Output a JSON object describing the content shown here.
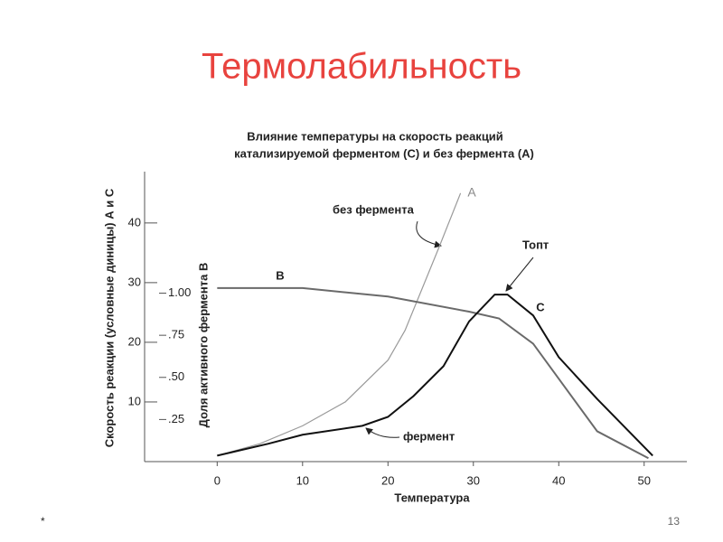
{
  "slide": {
    "title": "Термолабильность",
    "footer_left": "*",
    "page_number": "13"
  },
  "chart_data": {
    "type": "line",
    "title": "Влияние температуры на скорость реакций",
    "subtitle": "катализируемой ферментом (С) и без фермента (А)",
    "x_label": "Температура",
    "y_label": "Скорость реакции (условные диницы) А и С",
    "y2_label": "Доля активного фермента В",
    "xlim": [
      -8.5,
      55
    ],
    "xticks": [
      0,
      10,
      20,
      30,
      40,
      50
    ],
    "ylim": [
      0,
      48
    ],
    "yticks": [
      10,
      20,
      30,
      40
    ],
    "y2lim": [
      0,
      1.7
    ],
    "y2ticks": [
      {
        "value": 1,
        "label": "1.00"
      },
      {
        "value": 0.75,
        "label": ".75"
      },
      {
        "value": 0.5,
        "label": ".50"
      },
      {
        "value": 0.25,
        "label": ".25"
      }
    ],
    "series": [
      {
        "name": "А",
        "color": "#9a9a9a",
        "x": [
          0,
          5,
          10,
          15,
          20,
          22,
          24,
          26,
          28.5
        ],
        "values": [
          1,
          3,
          6,
          10,
          17,
          22,
          29,
          36,
          45
        ]
      },
      {
        "name": "В",
        "color": "#6a6a6a",
        "axis": "y2",
        "x": [
          0,
          10,
          20,
          29.5,
          33,
          37,
          44.5,
          50.5
        ],
        "values": [
          1.03,
          1.03,
          0.98,
          0.89,
          0.85,
          0.7,
          0.18,
          0.02
        ]
      },
      {
        "name": "С",
        "color": "#111111",
        "x": [
          0,
          6,
          10,
          17,
          20,
          23,
          26.5,
          29.5,
          32.5,
          34,
          37,
          40,
          44.5,
          51
        ],
        "values": [
          1,
          3,
          4.5,
          6,
          7.5,
          11,
          16,
          23.5,
          28,
          28,
          24.5,
          17.5,
          10.5,
          1
        ]
      }
    ],
    "annotations": [
      "без фермента",
      "Топт",
      "фермент"
    ]
  }
}
